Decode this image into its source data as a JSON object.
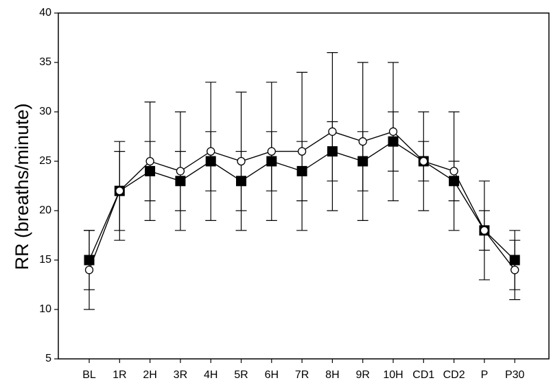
{
  "chart_data": {
    "type": "line",
    "title": "",
    "xlabel": "",
    "ylabel": "RR (breaths/minute)",
    "categories": [
      "BL",
      "1R",
      "2H",
      "3R",
      "4H",
      "5R",
      "6H",
      "7R",
      "8H",
      "9R",
      "10H",
      "CD1",
      "CD2",
      "P",
      "P30"
    ],
    "ylim": [
      5,
      40
    ],
    "yticks": [
      5,
      10,
      15,
      20,
      25,
      30,
      35,
      40
    ],
    "grid": false,
    "series": [
      {
        "marker": "square",
        "fill": "#000000",
        "values": [
          15,
          22,
          24,
          23,
          25,
          23,
          25,
          24,
          26,
          25,
          27,
          25,
          23,
          18,
          15
        ],
        "error_low": [
          10,
          17,
          19,
          18,
          19,
          18,
          19,
          18,
          20,
          19,
          21,
          20,
          18,
          13,
          11
        ],
        "error_high": [
          18,
          27,
          27,
          26,
          28,
          26,
          28,
          27,
          29,
          28,
          30,
          27,
          25,
          20,
          17
        ]
      },
      {
        "marker": "circle",
        "fill": "#ffffff",
        "values": [
          14,
          22,
          25,
          24,
          26,
          25,
          26,
          26,
          28,
          27,
          28,
          25,
          24,
          18,
          14
        ],
        "error_low": [
          12,
          18,
          21,
          20,
          22,
          20,
          22,
          21,
          23,
          22,
          24,
          23,
          21,
          16,
          12
        ],
        "error_high": [
          18,
          26,
          31,
          30,
          33,
          32,
          33,
          34,
          36,
          35,
          35,
          30,
          30,
          23,
          18
        ]
      }
    ]
  }
}
